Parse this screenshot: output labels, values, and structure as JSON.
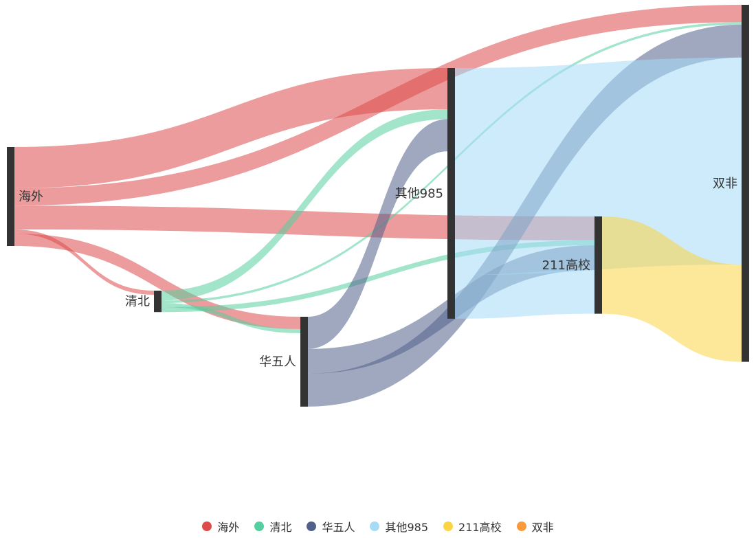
{
  "chart_data": {
    "type": "sankey",
    "nodes": [
      {
        "id": "haiwai",
        "name": "海外",
        "color": "#dd4b4b"
      },
      {
        "id": "qingbei",
        "name": "清北",
        "color": "#56cfa0"
      },
      {
        "id": "huawuren",
        "name": "华五人",
        "color": "#52618a"
      },
      {
        "id": "qita985",
        "name": "其他985",
        "color": "#a6dbf7"
      },
      {
        "id": "g211",
        "name": "211高校",
        "color": "#fbd443"
      },
      {
        "id": "shuangfei",
        "name": "双非",
        "color": "#f99a3e"
      }
    ],
    "links": [
      {
        "source": "haiwai",
        "target": "qita985",
        "value": 100
      },
      {
        "source": "haiwai",
        "target": "shuangfei",
        "value": 42
      },
      {
        "source": "haiwai",
        "target": "g211",
        "value": 58
      },
      {
        "source": "haiwai",
        "target": "qingbei",
        "value": 10
      },
      {
        "source": "haiwai",
        "target": "huawuren",
        "value": 30
      },
      {
        "source": "qingbei",
        "target": "qita985",
        "value": 24
      },
      {
        "source": "qingbei",
        "target": "shuangfei",
        "value": 6
      },
      {
        "source": "qingbei",
        "target": "huawuren",
        "value": 10
      },
      {
        "source": "qingbei",
        "target": "g211",
        "value": 12
      },
      {
        "source": "huawuren",
        "target": "qita985",
        "value": 78
      },
      {
        "source": "huawuren",
        "target": "g211",
        "value": 60
      },
      {
        "source": "huawuren",
        "target": "shuangfei",
        "value": 80
      },
      {
        "source": "qita985",
        "target": "shuangfei",
        "value": 502
      },
      {
        "source": "qita985",
        "target": "g211",
        "value": 106
      },
      {
        "source": "g211",
        "target": "shuangfei",
        "value": 236
      }
    ],
    "legend": [
      "海外",
      "清北",
      "华五人",
      "其他985",
      "211高校",
      "双非"
    ]
  }
}
